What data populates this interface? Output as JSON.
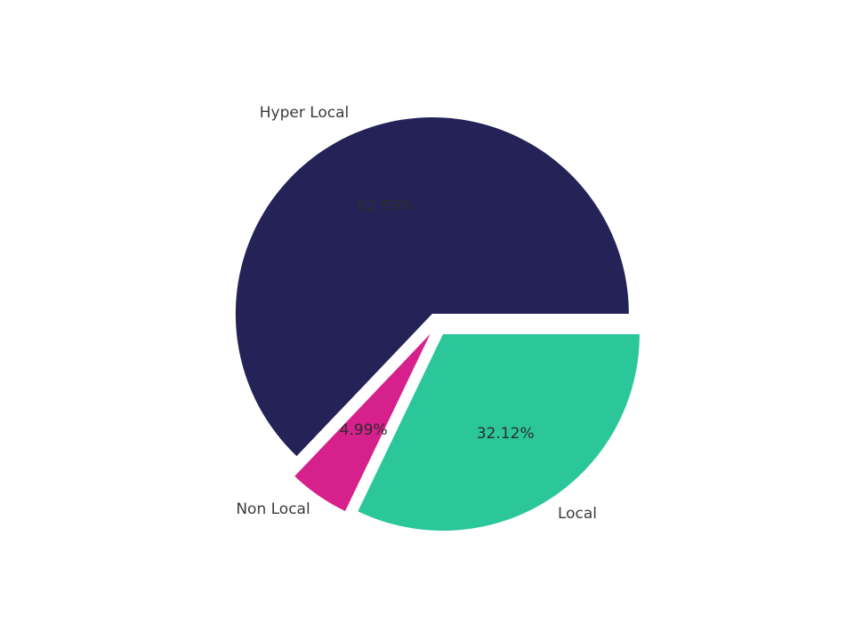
{
  "chart_data": {
    "type": "pie",
    "title": "",
    "legend": "none",
    "background": "#ffffff",
    "labels_position": "outside",
    "percents_position": "inside",
    "start_angle_deg": 0,
    "direction": "counterclockwise",
    "slices": [
      {
        "label": "Hyper Local",
        "value": 62.89,
        "pct_label": "62.89%",
        "color": "#242257"
      },
      {
        "label": "Non Local",
        "value": 4.99,
        "pct_label": "4.99%",
        "color": "#D6218C"
      },
      {
        "label": "Local",
        "value": 32.12,
        "pct_label": "32.12%",
        "color": "#2BC79B"
      }
    ],
    "outer_label_color": "#3a3a3a",
    "pct_label_color": "#2d2d2d"
  }
}
